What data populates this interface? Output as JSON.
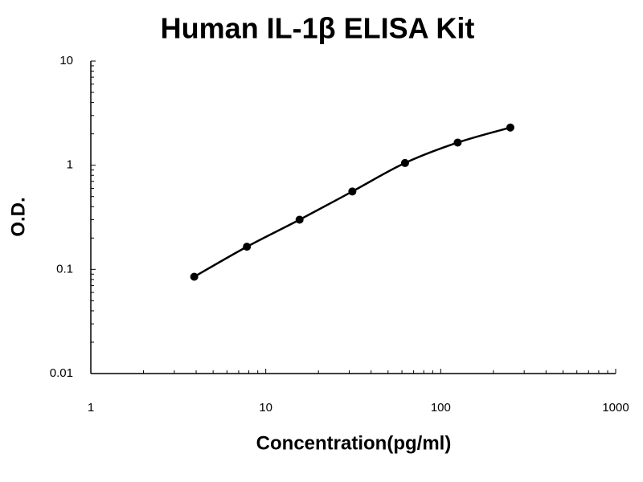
{
  "chart_data": {
    "type": "line",
    "title": "Human IL-1β ELISA Kit",
    "x_label": "Concentration(pg/ml)",
    "y_label": "O.D.",
    "x": [
      3.9,
      7.8,
      15.6,
      31.25,
      62.5,
      125,
      250
    ],
    "values": [
      0.085,
      0.165,
      0.3,
      0.56,
      1.05,
      1.65,
      2.3
    ],
    "color": "#000000",
    "x_log": true,
    "y_log": true,
    "xlim": [
      1,
      1000
    ],
    "ylim": [
      0.01,
      10
    ],
    "xticks": [
      1,
      10,
      100,
      1000
    ],
    "yticks": [
      0.01,
      0.1,
      1,
      10
    ],
    "minor_ticks": true
  }
}
